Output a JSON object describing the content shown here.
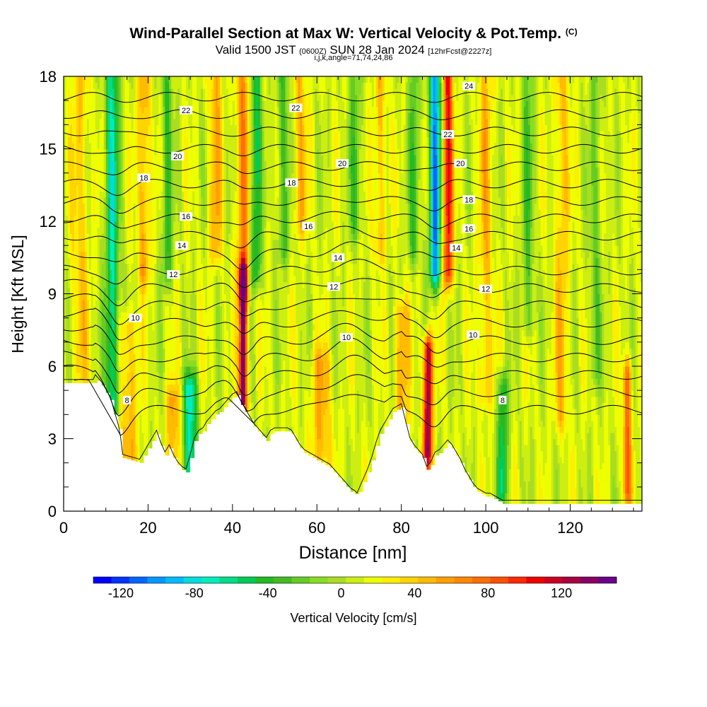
{
  "title": {
    "main": "Wind-Parallel Section at Max W: Vertical Velocity & Pot.Temp.",
    "copyright": "(C)",
    "valid_prefix": "Valid 1500 JST",
    "valid_utc": "(0600Z)",
    "valid_date": "SUN 28 Jan 2024",
    "forecast": "[12hrFcst@2227z]",
    "grid_info": "i,j,k,angle=71,74,24,86"
  },
  "chart_data": {
    "type": "heatmap",
    "xlabel": "Distance [nm]",
    "ylabel": "Height [Kft MSL]",
    "xlim": [
      0,
      137
    ],
    "ylim": [
      0,
      18
    ],
    "x_ticks": [
      0,
      20,
      40,
      60,
      80,
      100,
      120
    ],
    "y_ticks": [
      0,
      3,
      6,
      9,
      12,
      15,
      18
    ],
    "colorbar": {
      "label": "Vertical Velocity [cm/s]",
      "ticks": [
        -120,
        -80,
        -40,
        0,
        40,
        80,
        120
      ],
      "range": [
        -135,
        150
      ],
      "colors": [
        "#0000ff",
        "#0033ff",
        "#0066ff",
        "#0099ff",
        "#00bbff",
        "#00dddd",
        "#00eebb",
        "#00dd88",
        "#00cc55",
        "#22bb22",
        "#44bb22",
        "#66cc22",
        "#88dd22",
        "#aadd22",
        "#ccee11",
        "#eeff00",
        "#ffee00",
        "#ffd400",
        "#ffbb00",
        "#ffa000",
        "#ff8800",
        "#ff6e00",
        "#ff5000",
        "#ff2a00",
        "#ee0000",
        "#cc0022",
        "#aa0044",
        "#880066",
        "#6a0088"
      ]
    },
    "terrain_profile": {
      "x": [
        0,
        7,
        7.5,
        9,
        10,
        11,
        12,
        13,
        13.5,
        14,
        18,
        19,
        20,
        21,
        22,
        23,
        24,
        25,
        26,
        27,
        28,
        29,
        30,
        31,
        32,
        33,
        34,
        35,
        36,
        37,
        38,
        39,
        40,
        41,
        42,
        43,
        44,
        45,
        46,
        47,
        48,
        49,
        50,
        51,
        52,
        53,
        54,
        55,
        56,
        57,
        58,
        59,
        60,
        61,
        62,
        63,
        64,
        65,
        66,
        67,
        68,
        69,
        69.5,
        70,
        71,
        72,
        73,
        74,
        75,
        76,
        77,
        78,
        79,
        80,
        81,
        82,
        83,
        84,
        85,
        86,
        87,
        88,
        89,
        90,
        91,
        92,
        93,
        94,
        95,
        96,
        97,
        98,
        99,
        100,
        101,
        102,
        103,
        104,
        105,
        106,
        137
      ],
      "y": [
        5.3,
        5.3,
        5.5,
        5.2,
        4.9,
        4.6,
        4.0,
        3.4,
        2.9,
        2.2,
        2.0,
        2.3,
        2.6,
        2.9,
        3.2,
        2.7,
        2.3,
        2.6,
        2.2,
        1.9,
        1.7,
        1.6,
        2.2,
        2.9,
        3.2,
        3.3,
        3.6,
        3.8,
        4.0,
        4.1,
        4.3,
        4.5,
        4.7,
        4.8,
        4.4,
        4.1,
        3.8,
        3.5,
        3.3,
        3.1,
        2.9,
        3.2,
        3.3,
        3.3,
        3.3,
        3.3,
        3.2,
        2.9,
        2.6,
        2.4,
        2.3,
        2.2,
        2.1,
        2.0,
        1.9,
        1.8,
        1.6,
        1.4,
        1.2,
        1.0,
        0.8,
        0.7,
        0.6,
        0.8,
        1.2,
        1.6,
        2.1,
        2.7,
        3.2,
        3.5,
        3.8,
        4.1,
        4.2,
        4.3,
        3.6,
        2.9,
        2.6,
        2.4,
        2.2,
        1.7,
        1.9,
        2.3,
        2.4,
        2.6,
        2.8,
        2.6,
        2.3,
        2.0,
        1.6,
        1.3,
        1.0,
        0.8,
        0.7,
        0.6,
        0.6,
        0.5,
        0.4,
        0.3,
        0.3,
        0.3,
        0.3
      ]
    },
    "theta_contour_labels": [
      {
        "text": "8",
        "x": 15,
        "y": 4.6
      },
      {
        "text": "8",
        "x": 104,
        "y": 4.6
      },
      {
        "text": "10",
        "x": 17,
        "y": 8.0
      },
      {
        "text": "10",
        "x": 67,
        "y": 7.2
      },
      {
        "text": "10",
        "x": 97,
        "y": 7.3
      },
      {
        "text": "12",
        "x": 26,
        "y": 9.8
      },
      {
        "text": "12",
        "x": 64,
        "y": 9.3
      },
      {
        "text": "12",
        "x": 100,
        "y": 9.2
      },
      {
        "text": "14",
        "x": 28,
        "y": 11.0
      },
      {
        "text": "14",
        "x": 65,
        "y": 10.5
      },
      {
        "text": "14",
        "x": 93,
        "y": 10.9
      },
      {
        "text": "16",
        "x": 29,
        "y": 12.2
      },
      {
        "text": "16",
        "x": 58,
        "y": 11.8
      },
      {
        "text": "16",
        "x": 96,
        "y": 11.7
      },
      {
        "text": "18",
        "x": 19,
        "y": 13.8
      },
      {
        "text": "18",
        "x": 54,
        "y": 13.6
      },
      {
        "text": "18",
        "x": 96,
        "y": 12.9
      },
      {
        "text": "20",
        "x": 27,
        "y": 14.7
      },
      {
        "text": "20",
        "x": 66,
        "y": 14.4
      },
      {
        "text": "20",
        "x": 94,
        "y": 14.4
      },
      {
        "text": "22",
        "x": 29,
        "y": 16.6
      },
      {
        "text": "22",
        "x": 55,
        "y": 16.7
      },
      {
        "text": "22",
        "x": 91,
        "y": 15.6
      },
      {
        "text": "24",
        "x": 96,
        "y": 17.6
      }
    ],
    "theta_levels": [
      7,
      8,
      9,
      10,
      11,
      12,
      13,
      14,
      15,
      16,
      17,
      18,
      19,
      20,
      21,
      22,
      23,
      24,
      25
    ],
    "velocity_features": [
      {
        "x": 11.5,
        "w": 1.6,
        "a": -75,
        "z0": 4.5,
        "z1": 18
      },
      {
        "x": 15.5,
        "w": 2.0,
        "a": 40,
        "z0": 2.0,
        "z1": 7.5
      },
      {
        "x": 30,
        "w": 1.6,
        "a": -85,
        "z0": 1.8,
        "z1": 5.0
      },
      {
        "x": 26,
        "w": 1.6,
        "a": 45,
        "z0": 2.0,
        "z1": 4.5
      },
      {
        "x": 42.5,
        "w": 0.9,
        "a": 150,
        "z0": 4.6,
        "z1": 9.5
      },
      {
        "x": 42.5,
        "w": 1.6,
        "a": 55,
        "z0": 9.5,
        "z1": 18
      },
      {
        "x": 45.5,
        "w": 1.3,
        "a": -60,
        "z0": 10,
        "z1": 18
      },
      {
        "x": 61,
        "w": 2.4,
        "a": 40,
        "z0": 2.0,
        "z1": 6.0
      },
      {
        "x": 86.3,
        "w": 1.0,
        "a": 135,
        "z0": 2.5,
        "z1": 6.5
      },
      {
        "x": 80,
        "w": 1.6,
        "a": 45,
        "z0": 4.0,
        "z1": 8.0
      },
      {
        "x": 88,
        "w": 1.4,
        "a": -110,
        "z0": 10,
        "z1": 18
      },
      {
        "x": 91,
        "w": 1.2,
        "a": 95,
        "z0": 10,
        "z1": 18
      },
      {
        "x": 104,
        "w": 1.2,
        "a": -65,
        "z0": 1.0,
        "z1": 5.0
      },
      {
        "x": 133.5,
        "w": 1.0,
        "a": 70,
        "z0": 1.0,
        "z1": 5.5
      },
      {
        "x": 19,
        "w": 1.4,
        "a": 45,
        "z0": 10,
        "z1": 18
      },
      {
        "x": 24.5,
        "w": 1.2,
        "a": -45,
        "z0": 10,
        "z1": 18
      },
      {
        "x": 36,
        "w": 1.4,
        "a": 40,
        "z0": 11,
        "z1": 18
      },
      {
        "x": 52,
        "w": 1.4,
        "a": -40,
        "z0": 11,
        "z1": 18
      },
      {
        "x": 56,
        "w": 1.6,
        "a": 35,
        "z0": 12,
        "z1": 18
      },
      {
        "x": 69,
        "w": 1.4,
        "a": -35,
        "z0": 12,
        "z1": 18
      },
      {
        "x": 75,
        "w": 1.4,
        "a": 35,
        "z0": 11,
        "z1": 18
      },
      {
        "x": 83,
        "w": 1.2,
        "a": -40,
        "z0": 11,
        "z1": 18
      },
      {
        "x": 100,
        "w": 1.6,
        "a": 35,
        "z0": 5,
        "z1": 18
      },
      {
        "x": 110,
        "w": 1.4,
        "a": -35,
        "z0": 8,
        "z1": 18
      },
      {
        "x": 118,
        "w": 1.6,
        "a": 35,
        "z0": 4,
        "z1": 18
      },
      {
        "x": 126,
        "w": 1.4,
        "a": -30,
        "z0": 6,
        "z1": 18
      },
      {
        "x": 4,
        "w": 2.0,
        "a": 30,
        "z0": 6,
        "z1": 18
      }
    ]
  }
}
